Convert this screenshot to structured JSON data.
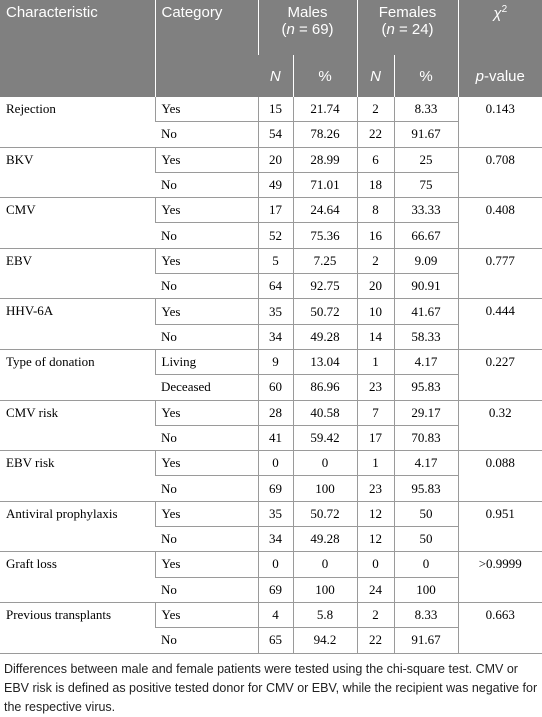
{
  "table": {
    "header": {
      "characteristic": "Characteristic",
      "category": "Category",
      "groups": [
        {
          "name": "Males",
          "open": "(",
          "symbol": "n",
          "count": " = 69)"
        },
        {
          "name": "Females",
          "open": "(",
          "symbol": "n",
          "count": " = 24)"
        }
      ],
      "test": {
        "symbol": "χ",
        "power": "2"
      },
      "columns": [
        "N",
        "%",
        "N",
        "%"
      ],
      "p_symbol": "p",
      "p_suffix": "-value"
    },
    "groups": [
      {
        "characteristic": "Rejection",
        "p": "0.143",
        "rows": [
          [
            "Yes",
            "15",
            "21.74",
            "2",
            "8.33"
          ],
          [
            "No",
            "54",
            "78.26",
            "22",
            "91.67"
          ]
        ]
      },
      {
        "characteristic": "BKV",
        "p": "0.708",
        "rows": [
          [
            "Yes",
            "20",
            "28.99",
            "6",
            "25"
          ],
          [
            "No",
            "49",
            "71.01",
            "18",
            "75"
          ]
        ]
      },
      {
        "characteristic": "CMV",
        "p": "0.408",
        "rows": [
          [
            "Yes",
            "17",
            "24.64",
            "8",
            "33.33"
          ],
          [
            "No",
            "52",
            "75.36",
            "16",
            "66.67"
          ]
        ]
      },
      {
        "characteristic": "EBV",
        "p": "0.777",
        "rows": [
          [
            "Yes",
            "5",
            "7.25",
            "2",
            "9.09"
          ],
          [
            "No",
            "64",
            "92.75",
            "20",
            "90.91"
          ]
        ]
      },
      {
        "characteristic": "HHV-6A",
        "p": "0.444",
        "rows": [
          [
            "Yes",
            "35",
            "50.72",
            "10",
            "41.67"
          ],
          [
            "No",
            "34",
            "49.28",
            "14",
            "58.33"
          ]
        ]
      },
      {
        "characteristic": "Type of donation",
        "p": "0.227",
        "rows": [
          [
            "Living",
            "9",
            "13.04",
            "1",
            "4.17"
          ],
          [
            "Deceased",
            "60",
            "86.96",
            "23",
            "95.83"
          ]
        ]
      },
      {
        "characteristic": "CMV risk",
        "p": "0.32",
        "rows": [
          [
            "Yes",
            "28",
            "40.58",
            "7",
            "29.17"
          ],
          [
            "No",
            "41",
            "59.42",
            "17",
            "70.83"
          ]
        ]
      },
      {
        "characteristic": "EBV risk",
        "p": "0.088",
        "rows": [
          [
            "Yes",
            "0",
            "0",
            "1",
            "4.17"
          ],
          [
            "No",
            "69",
            "100",
            "23",
            "95.83"
          ]
        ]
      },
      {
        "characteristic": "Antiviral prophylaxis",
        "p": "0.951",
        "rows": [
          [
            "Yes",
            "35",
            "50.72",
            "12",
            "50"
          ],
          [
            "No",
            "34",
            "49.28",
            "12",
            "50"
          ]
        ]
      },
      {
        "characteristic": "Graft loss",
        "p": ">0.9999",
        "rows": [
          [
            "Yes",
            "0",
            "0",
            "0",
            "0"
          ],
          [
            "No",
            "69",
            "100",
            "24",
            "100"
          ]
        ]
      },
      {
        "characteristic": "Previous transplants",
        "p": "0.663",
        "rows": [
          [
            "Yes",
            "4",
            "5.8",
            "2",
            "8.33"
          ],
          [
            "No",
            "65",
            "94.2",
            "22",
            "91.67"
          ]
        ]
      }
    ]
  },
  "footnote": "Differences between male and female patients were tested using the chi-square test. CMV or EBV risk is defined as positive tested donor for CMV or EBV, while the recipient was negative for the respective virus."
}
